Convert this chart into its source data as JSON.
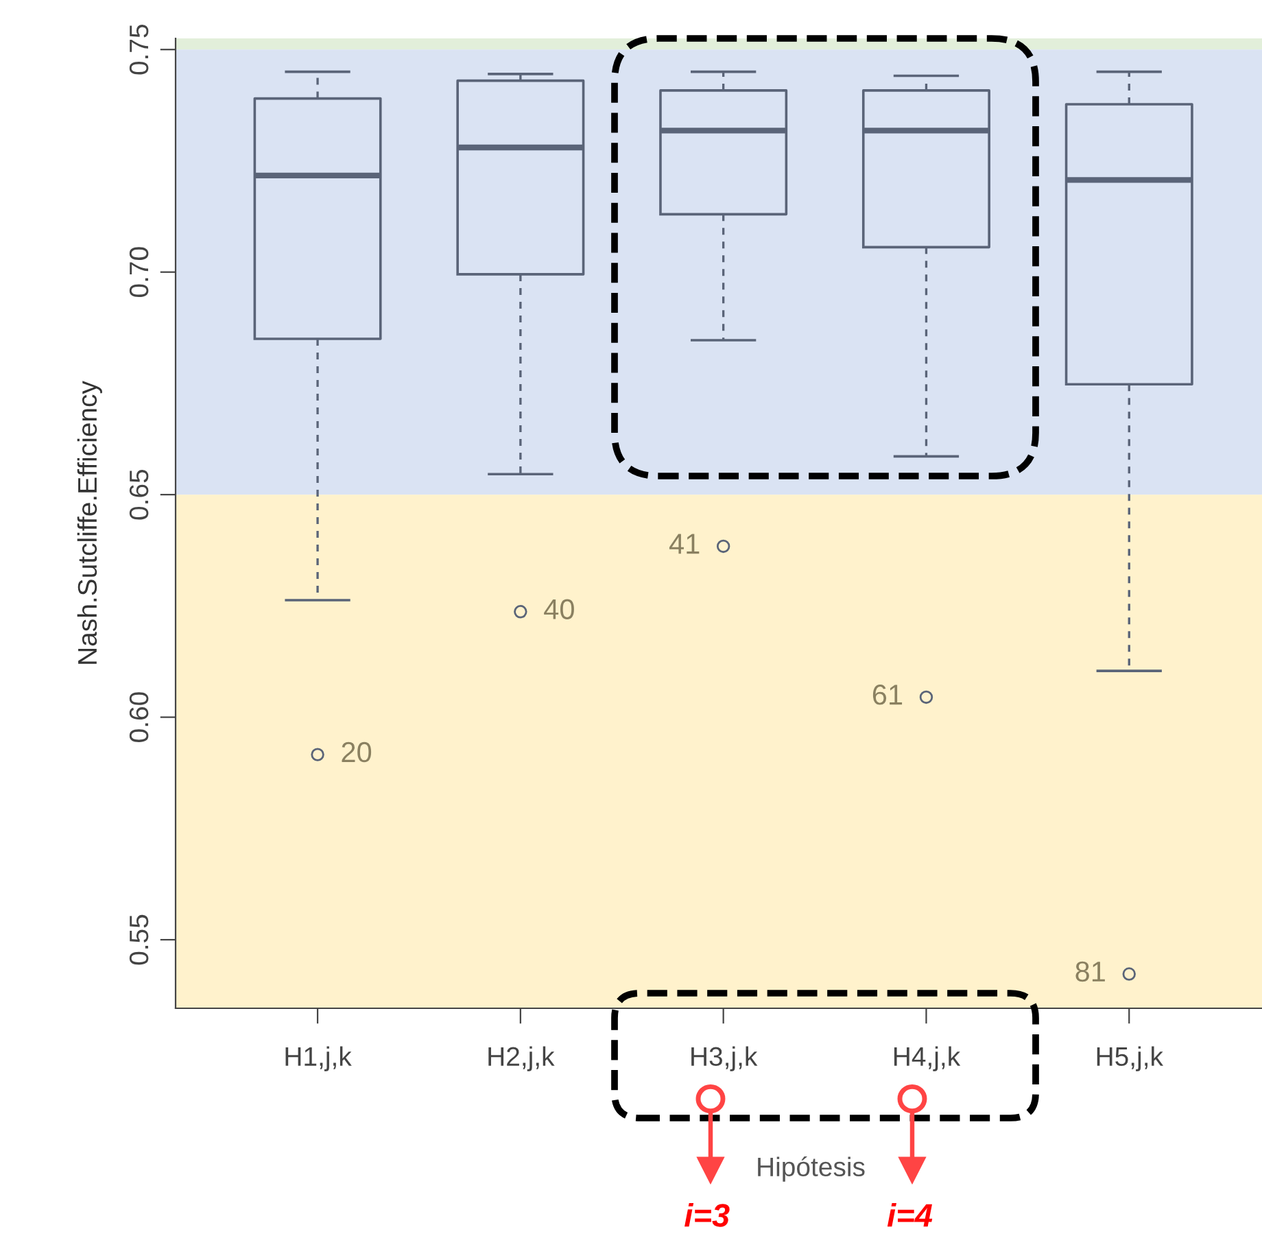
{
  "chart_data": {
    "type": "box",
    "xlabel": "Hipótesis",
    "ylabel": "Nash.Sutcliffe.Efficiency",
    "categories": [
      "H1,j,k",
      "H2,j,k",
      "H3,j,k",
      "H4,j,k",
      "H5,j,k"
    ],
    "color": "#5a6478",
    "boxes": [
      {
        "low": 0.6263,
        "q1": 0.685,
        "median": 0.7217,
        "q3": 0.739,
        "high": 0.745,
        "outliers": [
          0.5916
        ]
      },
      {
        "low": 0.6546,
        "q1": 0.6995,
        "median": 0.728,
        "q3": 0.743,
        "high": 0.7445,
        "outliers": [
          0.6237
        ]
      },
      {
        "low": 0.6847,
        "q1": 0.713,
        "median": 0.7318,
        "q3": 0.7408,
        "high": 0.745,
        "outliers": [
          0.6384
        ]
      },
      {
        "low": 0.6586,
        "q1": 0.7056,
        "median": 0.7318,
        "q3": 0.7408,
        "high": 0.7441,
        "outliers": [
          0.6045
        ]
      },
      {
        "low": 0.6104,
        "q1": 0.6748,
        "median": 0.7207,
        "q3": 0.7377,
        "high": 0.745,
        "outliers": [
          0.5423
        ]
      }
    ],
    "ylim": [
      0.5346,
      0.7525
    ],
    "yticks": [
      {
        "value": 0.55,
        "label": "0.55"
      },
      {
        "value": 0.6,
        "label": "0.60"
      },
      {
        "value": 0.65,
        "label": "0.65"
      },
      {
        "value": 0.7,
        "label": "0.70"
      },
      {
        "value": 0.75,
        "label": "0.75"
      }
    ],
    "bands": [
      {
        "axis": "y",
        "from": 0.75,
        "to": 0.7525,
        "color": "#e2efda"
      },
      {
        "axis": "y",
        "from": 0.65,
        "to": 0.75,
        "color": "#dae3f3"
      },
      {
        "axis": "y",
        "from": 0.5346,
        "to": 0.65,
        "color": "#fff2cc"
      }
    ],
    "annotations": [
      "20",
      "40",
      "41",
      "61",
      "81",
      "i=3",
      "i=4"
    ],
    "grid": false
  }
}
